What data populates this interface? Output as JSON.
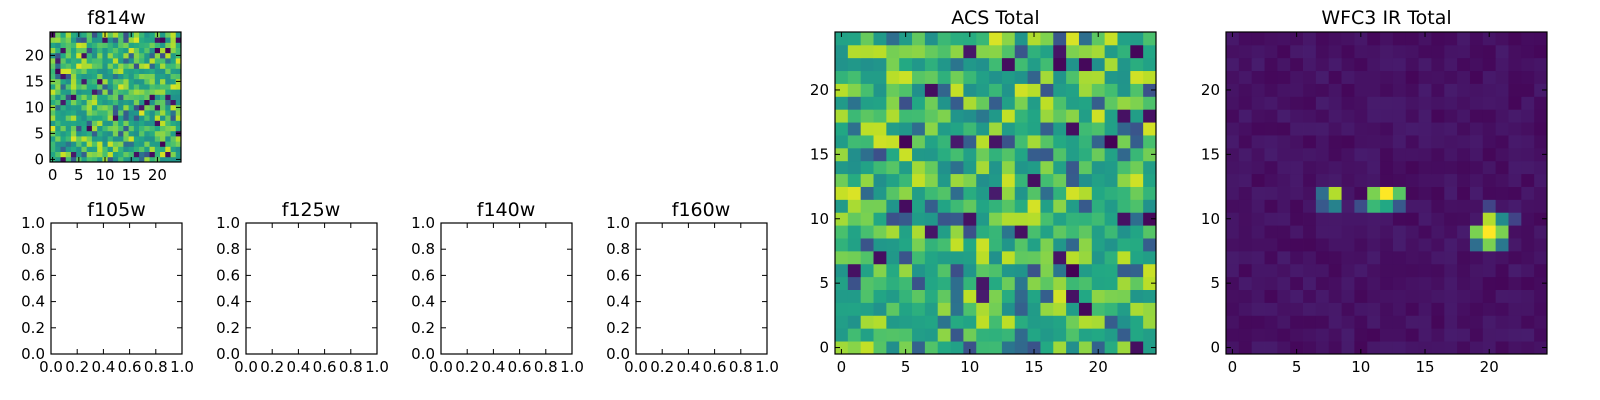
{
  "colormap": "viridis",
  "chart_data": [
    {
      "type": "heatmap",
      "title": "f814w",
      "grid_size": 25,
      "xticks": [
        "0",
        "5",
        "10",
        "15",
        "20"
      ],
      "yticks": [
        "0",
        "5",
        "10",
        "15",
        "20"
      ],
      "xlim": [
        -0.5,
        24.5
      ],
      "ylim": [
        -0.5,
        24.5
      ],
      "pattern": "noise"
    },
    {
      "type": "empty",
      "title": "f105w",
      "xticks": [
        "0.0",
        "0.2",
        "0.4",
        "0.6",
        "0.8",
        "1.0"
      ],
      "yticks": [
        "0.0",
        "0.2",
        "0.4",
        "0.6",
        "0.8",
        "1.0"
      ],
      "xlim": [
        0,
        1
      ],
      "ylim": [
        0,
        1
      ]
    },
    {
      "type": "empty",
      "title": "f125w",
      "xticks": [
        "0.0",
        "0.2",
        "0.4",
        "0.6",
        "0.8",
        "1.0"
      ],
      "yticks": [
        "0.0",
        "0.2",
        "0.4",
        "0.6",
        "0.8",
        "1.0"
      ],
      "xlim": [
        0,
        1
      ],
      "ylim": [
        0,
        1
      ]
    },
    {
      "type": "empty",
      "title": "f140w",
      "xticks": [
        "0.0",
        "0.2",
        "0.4",
        "0.6",
        "0.8",
        "1.0"
      ],
      "yticks": [
        "0.0",
        "0.2",
        "0.4",
        "0.6",
        "0.8",
        "1.0"
      ],
      "xlim": [
        0,
        1
      ],
      "ylim": [
        0,
        1
      ]
    },
    {
      "type": "empty",
      "title": "f160w",
      "xticks": [
        "0.0",
        "0.2",
        "0.4",
        "0.6",
        "0.8",
        "1.0"
      ],
      "yticks": [
        "0.0",
        "0.2",
        "0.4",
        "0.6",
        "0.8",
        "1.0"
      ],
      "xlim": [
        0,
        1
      ],
      "ylim": [
        0,
        1
      ]
    },
    {
      "type": "heatmap",
      "title": "ACS Total",
      "grid_size": 25,
      "xticks": [
        "0",
        "5",
        "10",
        "15",
        "20"
      ],
      "yticks": [
        "0",
        "5",
        "10",
        "15",
        "20"
      ],
      "xlim": [
        -0.5,
        24.5
      ],
      "ylim": [
        -0.5,
        24.5
      ],
      "pattern": "noise"
    },
    {
      "type": "heatmap",
      "title": "WFC3 IR Total",
      "grid_size": 25,
      "xticks": [
        "0",
        "5",
        "10",
        "15",
        "20"
      ],
      "yticks": [
        "0",
        "5",
        "10",
        "15",
        "20"
      ],
      "xlim": [
        -0.5,
        24.5
      ],
      "ylim": [
        -0.5,
        24.5
      ],
      "pattern": "sources",
      "bright_cells": [
        {
          "x": 8,
          "y": 12,
          "v": 0.95
        },
        {
          "x": 8,
          "y": 11,
          "v": 0.55
        },
        {
          "x": 7,
          "y": 12,
          "v": 0.45
        },
        {
          "x": 7,
          "y": 11,
          "v": 0.35
        },
        {
          "x": 11,
          "y": 12,
          "v": 0.9
        },
        {
          "x": 12,
          "y": 12,
          "v": 1.0
        },
        {
          "x": 13,
          "y": 12,
          "v": 0.85
        },
        {
          "x": 11,
          "y": 11,
          "v": 0.8
        },
        {
          "x": 12,
          "y": 11,
          "v": 0.75
        },
        {
          "x": 13,
          "y": 11,
          "v": 0.35
        },
        {
          "x": 10,
          "y": 11,
          "v": 0.3
        },
        {
          "x": 20,
          "y": 10,
          "v": 0.95
        },
        {
          "x": 21,
          "y": 10,
          "v": 0.6
        },
        {
          "x": 19,
          "y": 9,
          "v": 0.9
        },
        {
          "x": 20,
          "y": 9,
          "v": 1.0
        },
        {
          "x": 21,
          "y": 9,
          "v": 0.9
        },
        {
          "x": 19,
          "y": 8,
          "v": 0.45
        },
        {
          "x": 20,
          "y": 8,
          "v": 0.9
        },
        {
          "x": 21,
          "y": 8,
          "v": 0.5
        },
        {
          "x": 22,
          "y": 10,
          "v": 0.25
        },
        {
          "x": 20,
          "y": 11,
          "v": 0.25
        }
      ]
    }
  ]
}
